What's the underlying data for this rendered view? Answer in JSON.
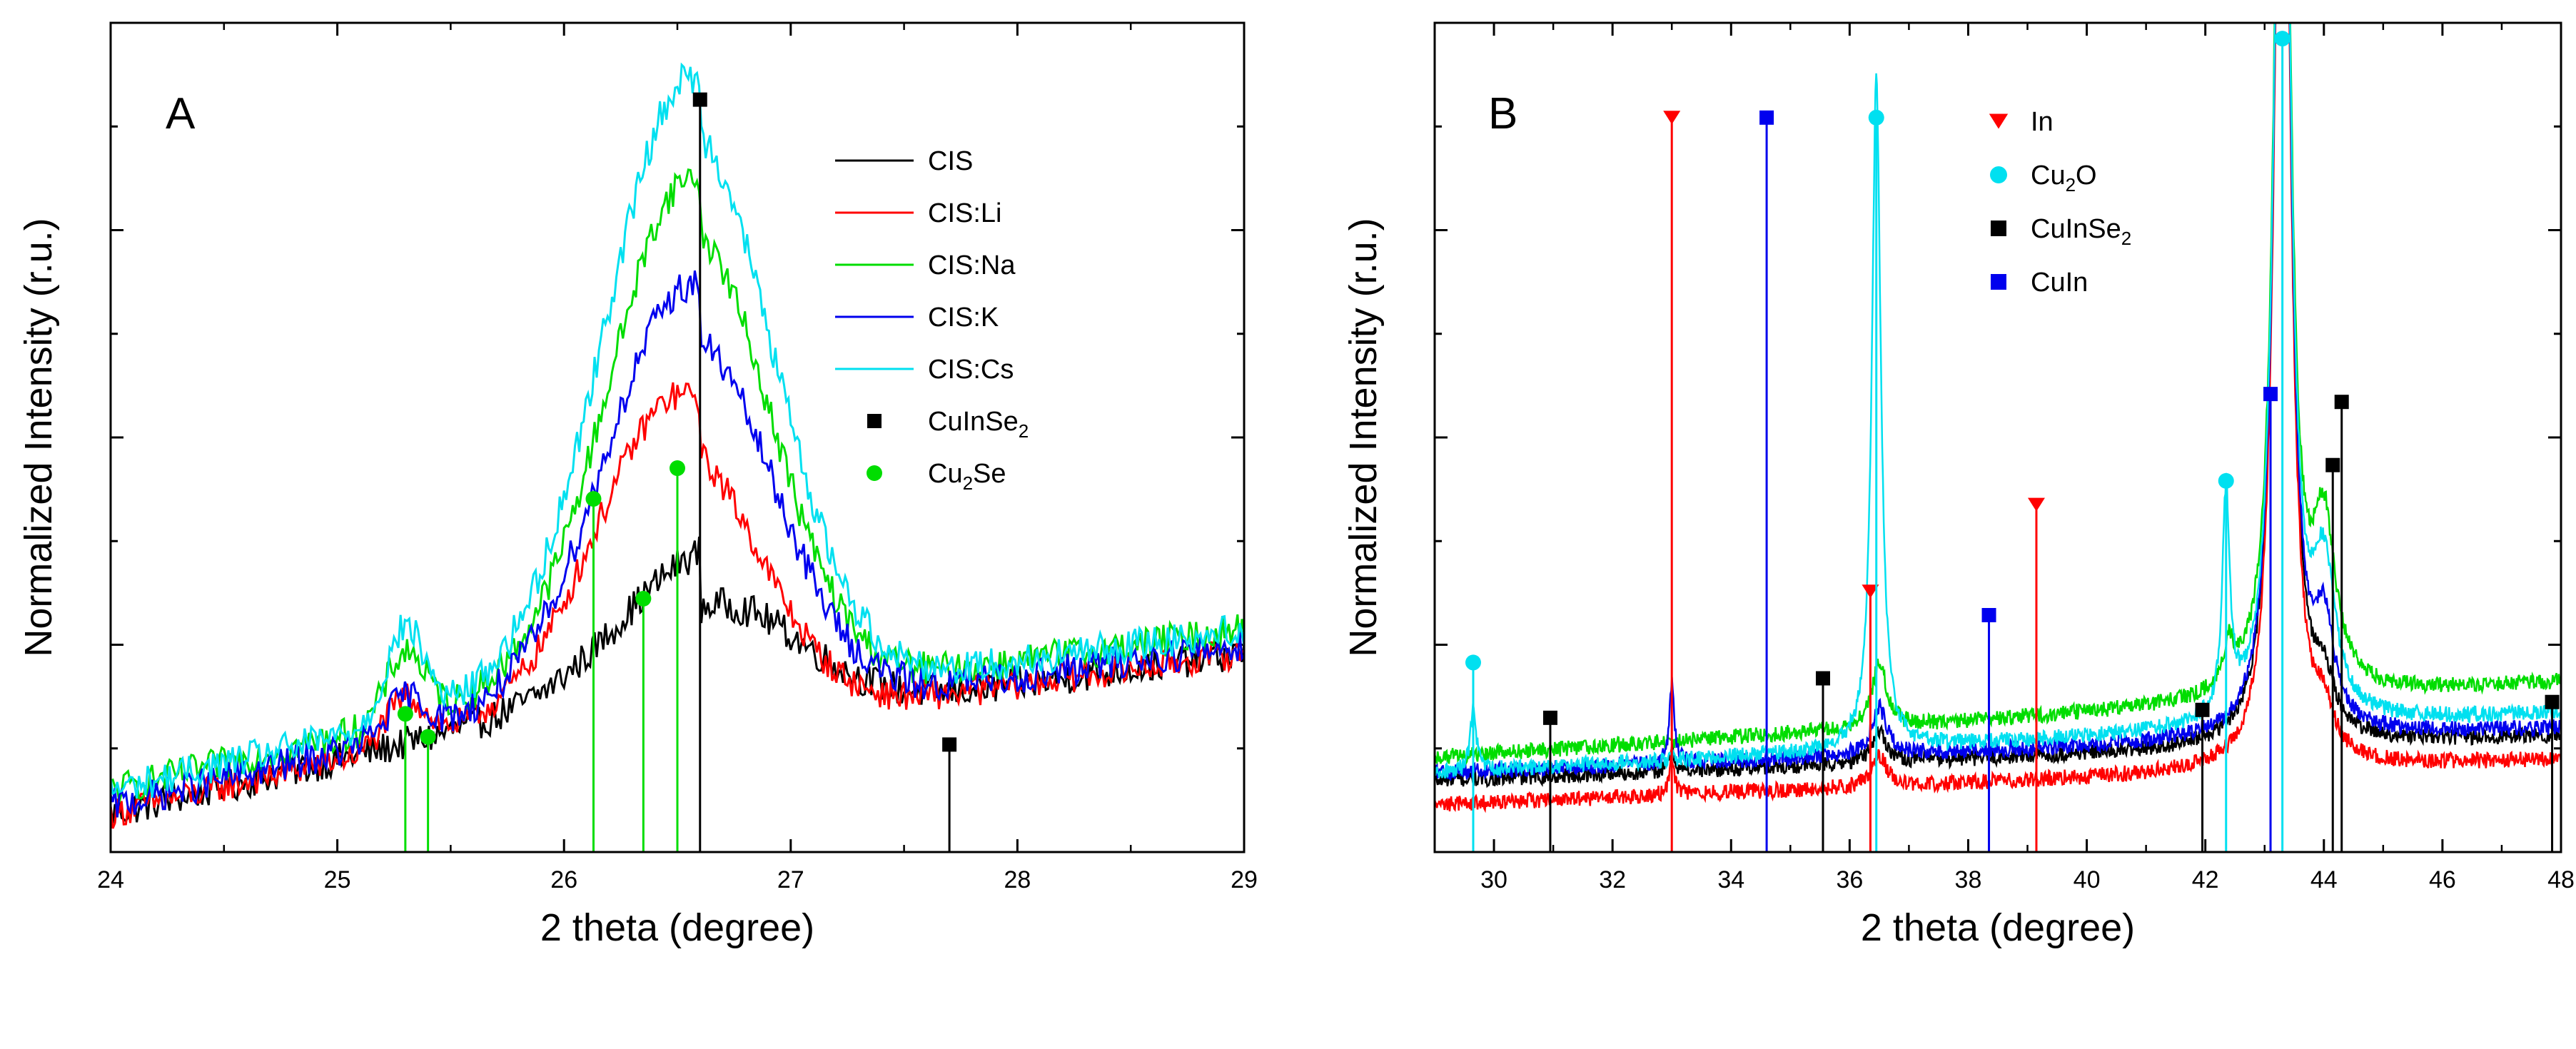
{
  "chart_data": [
    {
      "type": "line",
      "panel_label": "A",
      "xlabel": "2 theta (degree)",
      "ylabel": "Normalized Intensity (r.u.)",
      "xlim": [
        24,
        29
      ],
      "ylim": [
        0,
        1.08
      ],
      "x_ticks": [
        24,
        25,
        26,
        27,
        28,
        29
      ],
      "x_tick_labels": [
        "24",
        "25",
        "26",
        "27",
        "28",
        "29"
      ],
      "y_tick_labels_shown": false,
      "legend_position": "top-right",
      "series": [
        {
          "name": "CIS",
          "color": "#000000",
          "baseline": 0.05,
          "slope": 0.07,
          "peak": {
            "center": 26.65,
            "height": 0.16,
            "width": 0.55
          },
          "bump": null,
          "noise": 0.022
        },
        {
          "name": "CIS:Li",
          "color": "#ff0000",
          "baseline": 0.05,
          "slope": 0.07,
          "peak": {
            "center": 26.5,
            "height": 0.37,
            "width": 0.5
          },
          "bump": {
            "center": 25.3,
            "height": 0.06
          },
          "noise": 0.02
        },
        {
          "name": "CIS:Na",
          "color": "#00dd00",
          "baseline": 0.08,
          "slope": 0.07,
          "peak": {
            "center": 26.55,
            "height": 0.62,
            "width": 0.5
          },
          "bump": {
            "center": 25.3,
            "height": 0.09
          },
          "noise": 0.022
        },
        {
          "name": "CIS:K",
          "color": "#0000ee",
          "baseline": 0.06,
          "slope": 0.07,
          "peak": {
            "center": 26.55,
            "height": 0.5,
            "width": 0.52
          },
          "bump": {
            "center": 25.3,
            "height": 0.05
          },
          "noise": 0.022
        },
        {
          "name": "CIS:Cs",
          "color": "#00e0f0",
          "baseline": 0.08,
          "slope": 0.07,
          "peak": {
            "center": 26.55,
            "height": 0.75,
            "width": 0.52
          },
          "bump": {
            "center": 25.3,
            "height": 0.12
          },
          "noise": 0.022
        }
      ],
      "reference_markers": [
        {
          "name": "CuInSe2",
          "label_main": "CuInSe",
          "label_sub": "2",
          "color": "#000000",
          "shape": "square",
          "lines": [
            {
              "x": 26.6,
              "y": 0.98
            },
            {
              "x": 27.7,
              "y": 0.14
            }
          ]
        },
        {
          "name": "Cu2Se",
          "label_main": "Cu",
          "label_sub": "2",
          "label_tail": "Se",
          "color": "#00dd00",
          "shape": "circle",
          "lines": [
            {
              "x": 25.3,
              "y": 0.18
            },
            {
              "x": 25.4,
              "y": 0.15
            },
            {
              "x": 26.13,
              "y": 0.46
            },
            {
              "x": 26.35,
              "y": 0.33
            },
            {
              "x": 26.5,
              "y": 0.5
            }
          ]
        }
      ]
    },
    {
      "type": "line",
      "panel_label": "B",
      "xlabel": "2 theta (degree)",
      "ylabel": "Normalized Intensity (r.u.)",
      "xlim": [
        29,
        48
      ],
      "ylim": [
        0,
        1.05
      ],
      "x_ticks": [
        30,
        32,
        34,
        36,
        38,
        40,
        42,
        44,
        46,
        48
      ],
      "x_tick_labels": [
        "30",
        "32",
        "34",
        "36",
        "38",
        "40",
        "42",
        "44",
        "46",
        "48"
      ],
      "y_tick_labels_shown": false,
      "legend_position": "top-center",
      "series": [
        {
          "name": "CIS",
          "color": "#000000",
          "baseline": 0.09,
          "slope": 0.003,
          "noise": 0.01,
          "peaks": [
            {
              "center": 43.3,
              "height": 1.6,
              "width": 0.28
            },
            {
              "center": 44.0,
              "height": 0.06,
              "width": 0.4
            },
            {
              "center": 36.5,
              "height": 0.04,
              "width": 0.3
            },
            {
              "center": 33.0,
              "height": 0.03,
              "width": 0.1
            }
          ]
        },
        {
          "name": "CIS:Li",
          "color": "#ff0000",
          "baseline": 0.06,
          "slope": 0.003,
          "noise": 0.01,
          "peaks": [
            {
              "center": 43.3,
              "height": 1.6,
              "width": 0.28
            },
            {
              "center": 44.0,
              "height": 0.05,
              "width": 0.4
            },
            {
              "center": 36.5,
              "height": 0.04,
              "width": 0.3
            },
            {
              "center": 33.0,
              "height": 0.05,
              "width": 0.1
            }
          ]
        },
        {
          "name": "CIS:Na",
          "color": "#00dd00",
          "baseline": 0.12,
          "slope": 0.005,
          "noise": 0.01,
          "peaks": [
            {
              "center": 43.3,
              "height": 1.6,
              "width": 0.28
            },
            {
              "center": 44.0,
              "height": 0.2,
              "width": 0.45
            },
            {
              "center": 36.5,
              "height": 0.08,
              "width": 0.3
            },
            {
              "center": 42.4,
              "height": 0.05,
              "width": 0.2
            }
          ]
        },
        {
          "name": "CIS:K",
          "color": "#0000ee",
          "baseline": 0.1,
          "slope": 0.003,
          "noise": 0.01,
          "peaks": [
            {
              "center": 43.3,
              "height": 1.6,
              "width": 0.28
            },
            {
              "center": 44.0,
              "height": 0.12,
              "width": 0.4
            },
            {
              "center": 36.5,
              "height": 0.06,
              "width": 0.3
            },
            {
              "center": 33.0,
              "height": 0.1,
              "width": 0.1
            }
          ]
        },
        {
          "name": "CIS:Cs",
          "color": "#00e0f0",
          "baseline": 0.1,
          "slope": 0.004,
          "noise": 0.01,
          "peaks": [
            {
              "center": 43.3,
              "height": 1.6,
              "width": 0.28
            },
            {
              "center": 44.0,
              "height": 0.18,
              "width": 0.45
            },
            {
              "center": 36.45,
              "height": 0.85,
              "width": 0.18
            },
            {
              "center": 42.35,
              "height": 0.28,
              "width": 0.15
            },
            {
              "center": 29.65,
              "height": 0.08,
              "width": 0.12
            }
          ]
        }
      ],
      "legend": [
        {
          "label_main": "In",
          "color": "#ff0000",
          "shape": "triangle-down"
        },
        {
          "label_main": "Cu",
          "label_sub": "2",
          "label_tail": "O",
          "color": "#00e0f0",
          "shape": "circle"
        },
        {
          "label_main": "CuInSe",
          "label_sub": "2",
          "color": "#000000",
          "shape": "square"
        },
        {
          "label_main": "CuIn",
          "color": "#0000ee",
          "shape": "square"
        }
      ],
      "reference_markers": [
        {
          "name": "In",
          "color": "#ff0000",
          "shape": "triangle-down",
          "lines": [
            {
              "x": 33.0,
              "y": 0.93
            },
            {
              "x": 36.35,
              "y": 0.33
            },
            {
              "x": 39.15,
              "y": 0.44
            }
          ]
        },
        {
          "name": "Cu2O",
          "color": "#00e0f0",
          "shape": "circle",
          "lines": [
            {
              "x": 29.65,
              "y": 0.24
            },
            {
              "x": 36.45,
              "y": 0.93
            },
            {
              "x": 42.35,
              "y": 0.47
            },
            {
              "x": 43.3,
              "y": 1.03
            }
          ]
        },
        {
          "name": "CuInSe2",
          "color": "#000000",
          "shape": "square",
          "lines": [
            {
              "x": 30.95,
              "y": 0.17
            },
            {
              "x": 35.55,
              "y": 0.22
            },
            {
              "x": 41.95,
              "y": 0.18
            },
            {
              "x": 44.15,
              "y": 0.49
            },
            {
              "x": 44.3,
              "y": 0.57
            },
            {
              "x": 47.85,
              "y": 0.19
            }
          ]
        },
        {
          "name": "CuIn",
          "color": "#0000ee",
          "shape": "square",
          "lines": [
            {
              "x": 34.6,
              "y": 0.93
            },
            {
              "x": 38.35,
              "y": 0.3
            },
            {
              "x": 43.1,
              "y": 0.58
            }
          ]
        }
      ]
    }
  ]
}
